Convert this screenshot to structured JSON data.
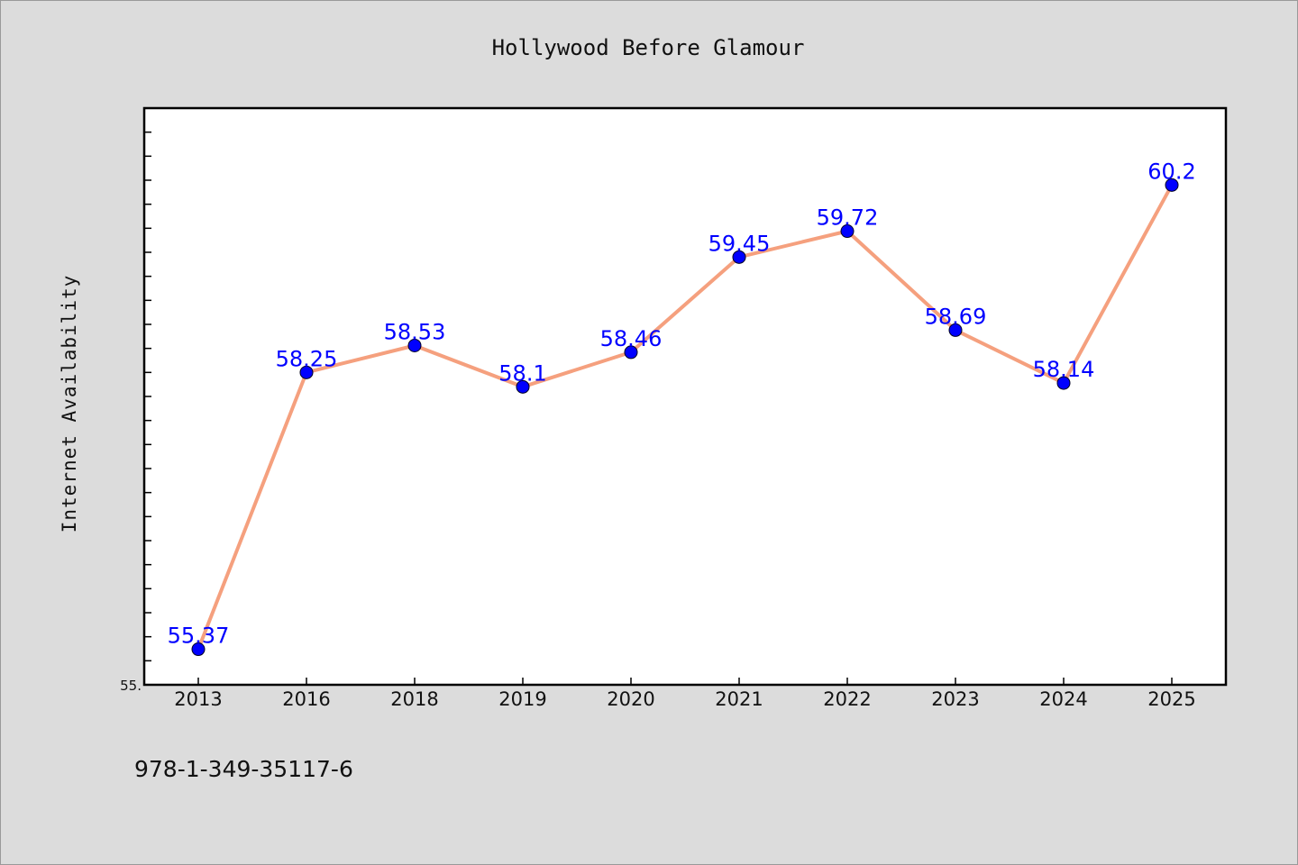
{
  "chart_data": {
    "type": "line",
    "title": "Hollywood Before Glamour",
    "xlabel": "",
    "ylabel": "Internet Availability",
    "categories": [
      "2013",
      "2016",
      "2018",
      "2019",
      "2020",
      "2021",
      "2022",
      "2023",
      "2024",
      "2025"
    ],
    "series": [
      {
        "values": [
          55.37,
          58.25,
          58.53,
          58.1,
          58.46,
          59.45,
          59.72,
          58.69,
          58.14,
          60.2
        ],
        "data_labels": [
          "55.37",
          "58.25",
          "58.53",
          "58.1",
          "58.46",
          "59.45",
          "59.72",
          "58.69",
          "58.14",
          "60.2"
        ]
      }
    ],
    "ylim": [
      55.0,
      61.0
    ],
    "yticks_labeled": [
      "55."
    ],
    "grid": false,
    "legend": "none",
    "colors": {
      "line": "#f5a07e",
      "marker": "#0000ff",
      "data_label": "#0000ff",
      "plot_background": "#ffffff",
      "figure_background": "#dcdcdc"
    }
  },
  "footer": {
    "isbn": "978-1-349-35117-6"
  }
}
